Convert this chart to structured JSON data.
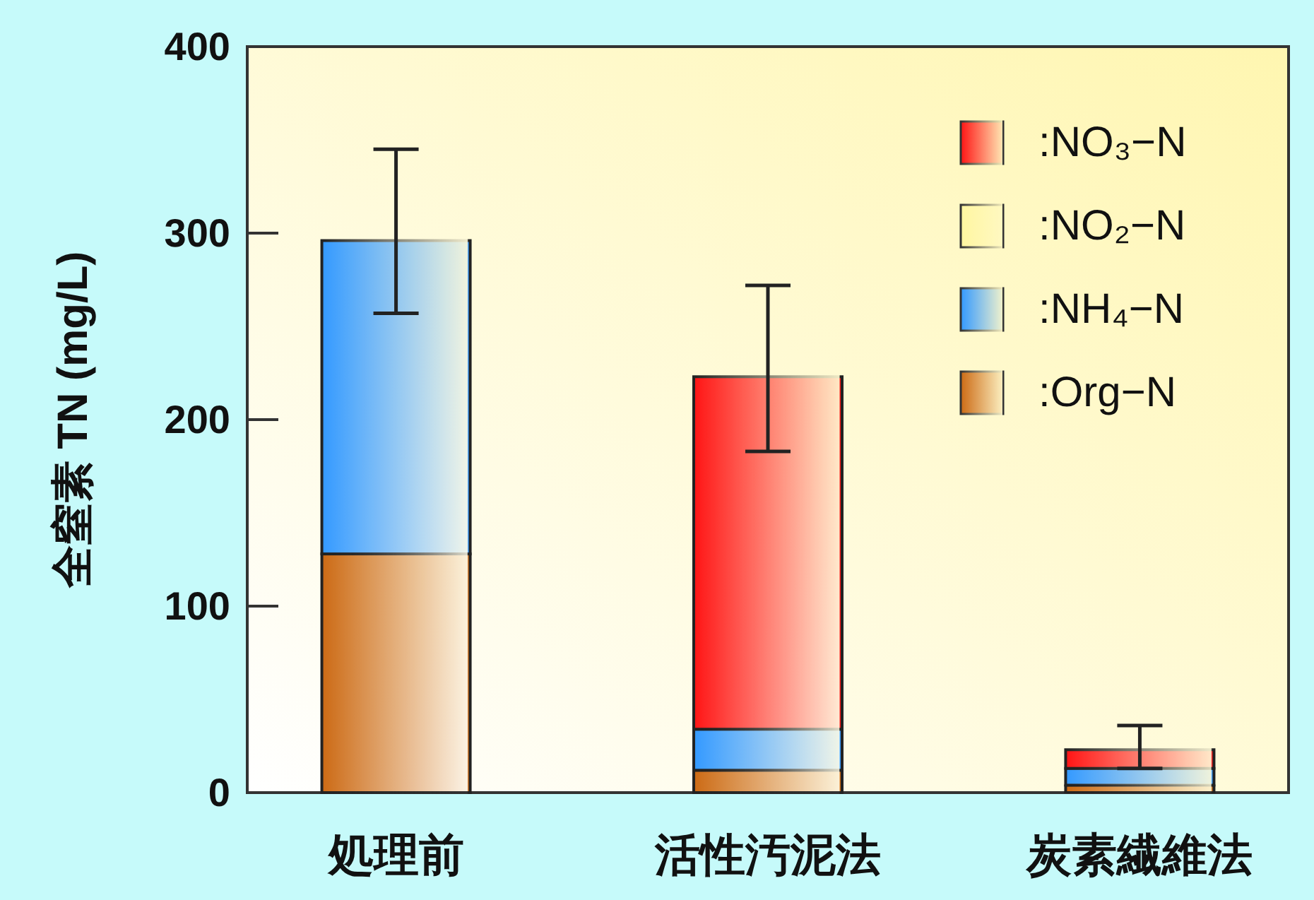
{
  "chart_data": {
    "type": "bar",
    "stacked": true,
    "ylabel": "全窒素 TN (mg/L)",
    "categories": [
      "処理前",
      "活性汚泥法",
      "炭素繊維法"
    ],
    "series": [
      {
        "name": ":Org−N",
        "color": "#cc6a14",
        "values": [
          128,
          12,
          4
        ]
      },
      {
        "name": ":NH₄−N",
        "color": "#3399ff",
        "values": [
          168,
          22,
          9
        ],
        "errors": [
          [
            257,
            345
          ],
          null,
          null
        ]
      },
      {
        "name": ":NO₂−N",
        "color": "#fff6a0",
        "values": [
          0,
          0,
          0
        ]
      },
      {
        "name": ":NO₃−N",
        "color": "#ff1414",
        "values": [
          0,
          189,
          10
        ],
        "errors": [
          null,
          [
            183,
            272
          ],
          [
            13,
            36
          ]
        ]
      }
    ],
    "ylim": [
      0,
      400
    ],
    "yticks": [
      0,
      100,
      200,
      300,
      400
    ],
    "grid": false,
    "legend": "top right"
  }
}
